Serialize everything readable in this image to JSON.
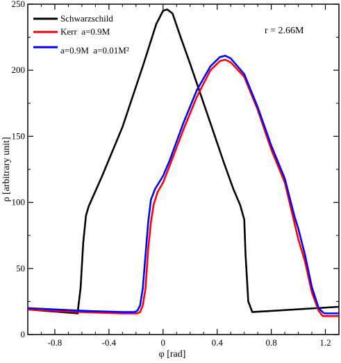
{
  "chart_data": {
    "type": "line",
    "xlabel": "φ [rad]",
    "ylabel": "ρ [arbitrary unit]",
    "xlim": [
      -1.0,
      1.3
    ],
    "ylim": [
      0,
      250
    ],
    "xticks": [
      -0.8,
      -0.4,
      0,
      0.4,
      0.8,
      1.2
    ],
    "xtick_labels": [
      "-0.8",
      "-0.4",
      "0",
      "0.4",
      "0.8",
      "1.2"
    ],
    "yticks": [
      0,
      50,
      100,
      150,
      200,
      250
    ],
    "ytick_labels": [
      "0",
      "50",
      "100",
      "150",
      "200",
      "250"
    ],
    "grid": false,
    "legend_position": "top-left",
    "annotation": "r = 2.66M",
    "series": [
      {
        "name": "Schwarzschild",
        "color": "#000000",
        "points": [
          [
            -1.0,
            19
          ],
          [
            -0.63,
            16
          ],
          [
            -0.63,
            18
          ],
          [
            -0.61,
            35
          ],
          [
            -0.59,
            70
          ],
          [
            -0.57,
            90
          ],
          [
            -0.55,
            97
          ],
          [
            -0.45,
            120
          ],
          [
            -0.3,
            157
          ],
          [
            -0.15,
            203
          ],
          [
            -0.05,
            235
          ],
          [
            0.0,
            245
          ],
          [
            0.03,
            246
          ],
          [
            0.07,
            243
          ],
          [
            0.13,
            225
          ],
          [
            0.2,
            205
          ],
          [
            0.35,
            160
          ],
          [
            0.45,
            130
          ],
          [
            0.52,
            110
          ],
          [
            0.57,
            98
          ],
          [
            0.6,
            87
          ],
          [
            0.61,
            60
          ],
          [
            0.63,
            25
          ],
          [
            0.66,
            17
          ],
          [
            1.3,
            21
          ]
        ]
      },
      {
        "name": "Kerr  a=0.9M",
        "color": "#ff0000",
        "points": [
          [
            -1.0,
            19
          ],
          [
            -0.6,
            17
          ],
          [
            -0.3,
            16
          ],
          [
            -0.19,
            16
          ],
          [
            -0.17,
            17
          ],
          [
            -0.15,
            22
          ],
          [
            -0.13,
            35
          ],
          [
            -0.11,
            65
          ],
          [
            -0.09,
            85
          ],
          [
            -0.07,
            98
          ],
          [
            -0.04,
            108
          ],
          [
            0.0,
            115
          ],
          [
            0.05,
            128
          ],
          [
            0.15,
            155
          ],
          [
            0.25,
            180
          ],
          [
            0.35,
            200
          ],
          [
            0.42,
            207
          ],
          [
            0.46,
            208
          ],
          [
            0.5,
            206
          ],
          [
            0.6,
            195
          ],
          [
            0.7,
            170
          ],
          [
            0.8,
            140
          ],
          [
            0.9,
            115
          ],
          [
            0.97,
            85
          ],
          [
            1.0,
            72
          ],
          [
            1.05,
            55
          ],
          [
            1.1,
            32
          ],
          [
            1.15,
            18
          ],
          [
            1.18,
            14
          ],
          [
            1.3,
            14
          ]
        ]
      },
      {
        "name": "a=0.9M  a=0.01M²",
        "color": "#0000ff",
        "points": [
          [
            -1.0,
            20
          ],
          [
            -0.6,
            18
          ],
          [
            -0.3,
            17
          ],
          [
            -0.21,
            17
          ],
          [
            -0.19,
            18
          ],
          [
            -0.17,
            22
          ],
          [
            -0.15,
            35
          ],
          [
            -0.13,
            60
          ],
          [
            -0.11,
            85
          ],
          [
            -0.09,
            102
          ],
          [
            -0.06,
            110
          ],
          [
            0.0,
            120
          ],
          [
            0.05,
            132
          ],
          [
            0.15,
            160
          ],
          [
            0.25,
            185
          ],
          [
            0.35,
            203
          ],
          [
            0.42,
            210
          ],
          [
            0.46,
            211
          ],
          [
            0.5,
            209
          ],
          [
            0.6,
            197
          ],
          [
            0.7,
            172
          ],
          [
            0.8,
            143
          ],
          [
            0.9,
            118
          ],
          [
            0.97,
            90
          ],
          [
            1.0,
            80
          ],
          [
            1.05,
            60
          ],
          [
            1.1,
            36
          ],
          [
            1.15,
            20
          ],
          [
            1.19,
            16
          ],
          [
            1.3,
            16
          ]
        ]
      }
    ]
  }
}
